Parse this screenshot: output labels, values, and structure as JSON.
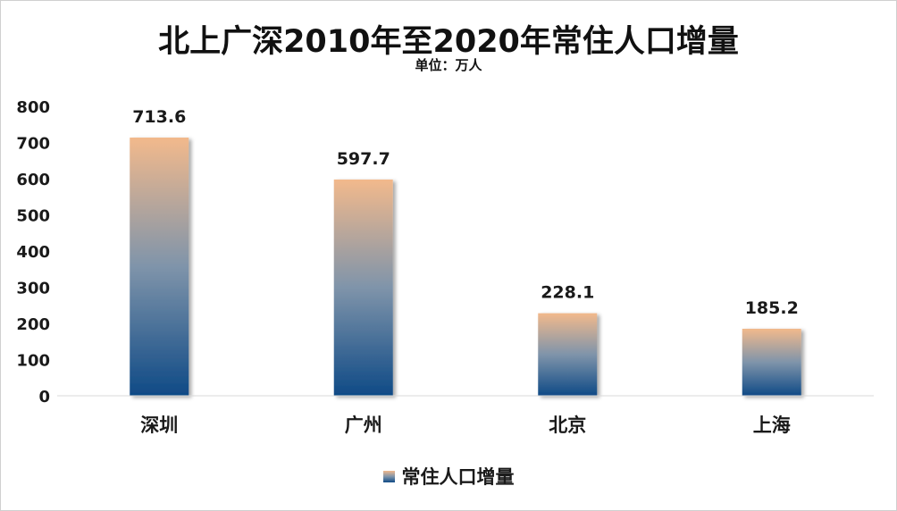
{
  "chart_data": {
    "type": "bar",
    "title": "北上广深2010年至2020年常住人口增量",
    "subtitle": "单位：万人",
    "categories": [
      "深圳",
      "广州",
      "北京",
      "上海"
    ],
    "series": [
      {
        "name": "常住人口增量",
        "values": [
          713.6,
          597.7,
          228.1,
          185.2
        ]
      }
    ],
    "data_labels": [
      "713.6",
      "597.7",
      "228.1",
      "185.2"
    ],
    "ylim": [
      0,
      800
    ],
    "yticks": [
      0,
      100,
      200,
      300,
      400,
      500,
      600,
      700,
      800
    ],
    "grid": false,
    "legend_position": "bottom",
    "colors": {
      "bar_top": "#f2b98c",
      "bar_mid": "#7f94aa",
      "bar_bottom": "#0f4a86",
      "axis": "#d9d9d9"
    }
  }
}
